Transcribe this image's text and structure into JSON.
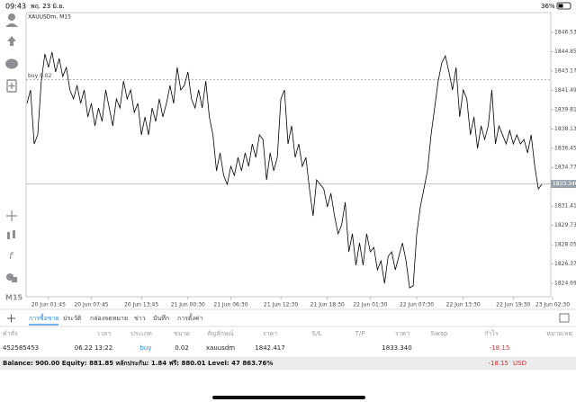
{
  "status_bar": {
    "time": "09:43",
    "date": "พฤ. 23 มิ.ย.",
    "battery": "36%"
  },
  "chart_data": {
    "type": "line",
    "title": "XAUUSDm, M15",
    "color": "#000000",
    "values": [
      1840.35,
      1841.52,
      1836.82,
      1837.61,
      1842.3,
      1844.65,
      1843.48,
      1844.81,
      1843.09,
      1844.26,
      1842.69,
      1843.48,
      1841.52,
      1840.74,
      1841.91,
      1840.35,
      1841.52,
      1839.17,
      1840.35,
      1838.39,
      1839.95,
      1838.78,
      1841.52,
      1839.95,
      1838.39,
      1840.74,
      1839.95,
      1842.3,
      1840.74,
      1841.52,
      1839.56,
      1840.35,
      1837.61,
      1839.17,
      1837.61,
      1839.95,
      1838.78,
      1840.74,
      1839.17,
      1840.35,
      1841.91,
      1840.35,
      1843.48,
      1841.52,
      1841.91,
      1843.09,
      1840.74,
      1839.95,
      1841.52,
      1839.95,
      1842.3,
      1839.17,
      1837.61,
      1834.48,
      1836.04,
      1834.08,
      1833.3,
      1834.87,
      1834.08,
      1835.65,
      1834.48,
      1836.04,
      1834.87,
      1836.82,
      1835.65,
      1837.61,
      1837.21,
      1833.69,
      1836.04,
      1834.48,
      1835.65,
      1840.74,
      1841.52,
      1836.82,
      1838.39,
      1835.65,
      1836.82,
      1834.87,
      1835.65,
      1832.91,
      1830.56,
      1833.69,
      1833.3,
      1832.91,
      1831.34,
      1832.52,
      1830.56,
      1829.0,
      1829.78,
      1831.74,
      1827.43,
      1829.0,
      1826.26,
      1828.21,
      1826.26,
      1829.0,
      1827.43,
      1827.82,
      1825.86,
      1826.65,
      1824.69,
      1827.04,
      1827.43,
      1825.86,
      1827.04,
      1828.21,
      1826.65,
      1824.3,
      1824.46,
      1829.0,
      1831.34,
      1832.91,
      1834.48,
      1837.61,
      1839.95,
      1842.3,
      1843.87,
      1844.49,
      1843.09,
      1841.52,
      1843.48,
      1839.17,
      1841.52,
      1840.74,
      1837.61,
      1839.17,
      1836.43,
      1838.39,
      1837.21,
      1838.39,
      1841.52,
      1836.82,
      1838.39,
      1837.61,
      1836.82,
      1838.0,
      1836.82,
      1837.61,
      1836.82,
      1837.21,
      1836.04,
      1837.61,
      1834.87,
      1832.91,
      1833.3
    ],
    "xlim": [
      0,
      148
    ],
    "xticks": [
      {
        "value": 6,
        "label": "20 Jun 01:45"
      },
      {
        "value": 18,
        "label": "20 Jun 07:45"
      },
      {
        "value": 32,
        "label": "20 Jun 13:45"
      },
      {
        "value": 45,
        "label": "21 Jun 00:30"
      },
      {
        "value": 57,
        "label": "21 Jun 06:30"
      },
      {
        "value": 71,
        "label": "21 Jun 12:30"
      },
      {
        "value": 84,
        "label": "21 Jun 18:30"
      },
      {
        "value": 96,
        "label": "22 Jun 01:30"
      },
      {
        "value": 109,
        "label": "22 Jun 07:30"
      },
      {
        "value": 122,
        "label": "22 Jun 13:30"
      },
      {
        "value": 136,
        "label": "22 Jun 19:30"
      },
      {
        "value": 147,
        "label": "23 Jun 02:30"
      }
    ],
    "ylim": [
      1823.52,
      1848.25
    ],
    "yticks": [
      {
        "value": 1846.53,
        "label": "1846.530"
      },
      {
        "value": 1844.85,
        "label": "1844.850"
      },
      {
        "value": 1843.17,
        "label": "1843.170"
      },
      {
        "value": 1841.49,
        "label": "1841.490"
      },
      {
        "value": 1839.81,
        "label": "1839.810"
      },
      {
        "value": 1838.13,
        "label": "1838.130"
      },
      {
        "value": 1836.45,
        "label": "1836.450"
      },
      {
        "value": 1834.77,
        "label": "1834.770"
      },
      {
        "value": 1831.41,
        "label": "1831.410"
      },
      {
        "value": 1829.73,
        "label": "1829.730"
      },
      {
        "value": 1828.05,
        "label": "1828.050"
      },
      {
        "value": 1826.37,
        "label": "1826.370"
      },
      {
        "value": 1824.69,
        "label": "1824.690"
      }
    ],
    "order_line": {
      "label": "buy 0.02",
      "value": 1842.417
    },
    "bid_line": {
      "value": 1833.34,
      "label": "1833.340"
    }
  },
  "sidebar": {
    "timeframe": "M15"
  },
  "tabs": [
    "การซื้อขาย",
    "ประวัติ",
    "กล่องจดหมาย",
    "ข่าว",
    "บันทึก",
    "การตั้งค่า"
  ],
  "table": {
    "headers": [
      "คำสั่ง",
      "เวลา",
      "ประเภท",
      "ขนาด",
      "สัญลักษณ์",
      "ราคา",
      "S/L",
      "T/P",
      "ราคา",
      "Swap",
      "กำไร",
      "หมายเหตุ"
    ],
    "row": {
      "ticket": "452585453",
      "time": "06.22 13:22",
      "type": "buy",
      "volume": "0.02",
      "symbol": "xauusdm",
      "price": "1842.417",
      "current_price": "1833.340",
      "profit": "-18.15"
    }
  },
  "balance": {
    "summary": "Balance: 900.00 Equity: 881.85 หลักประกัน: 1.84 ฟรี: 880.01 Level: 47 863.76%",
    "profit": "-18.15",
    "currency": "USD"
  }
}
